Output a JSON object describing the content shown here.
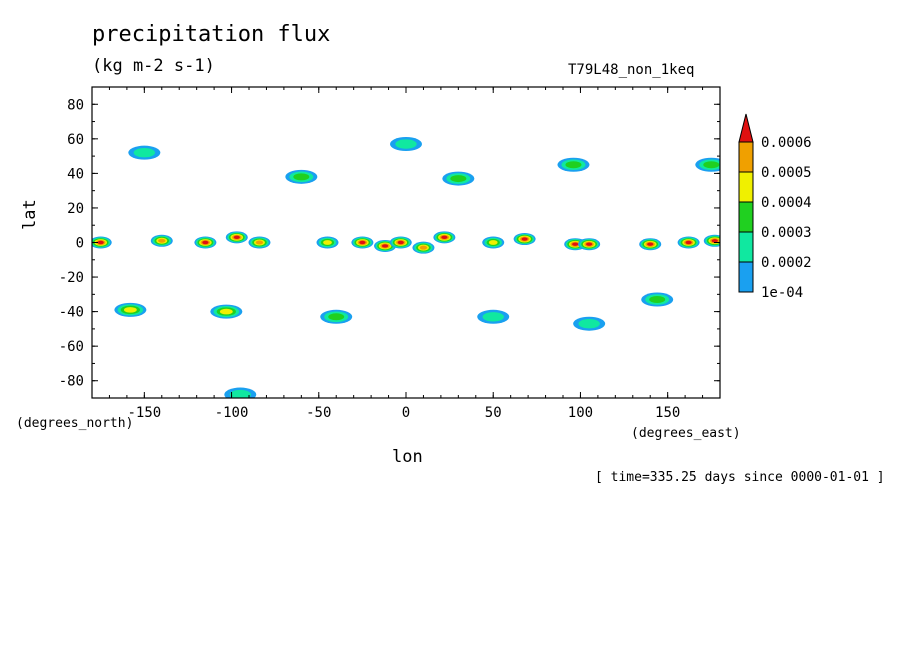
{
  "chart_data": {
    "type": "heatmap",
    "title": "precipitation flux",
    "units": "(kg m-2 s-1)",
    "run_label": "T79L48_non_1keq",
    "xlabel": "lon",
    "ylabel": "lat",
    "x_note": "(degrees_east)",
    "y_note": "(degrees_north)",
    "timestamp": "[ time=335.25 days since 0000-01-01 ]",
    "xlim": [
      -180,
      180
    ],
    "ylim": [
      -90,
      90
    ],
    "x_ticks": [
      -150,
      -100,
      -50,
      0,
      50,
      100,
      150
    ],
    "x_tick_labels": [
      "-150",
      "-100",
      "-50",
      "0",
      "50",
      "100",
      "150"
    ],
    "y_ticks": [
      80,
      60,
      40,
      20,
      0,
      -20,
      -40,
      -60,
      -80
    ],
    "y_tick_labels": [
      "80",
      "60",
      "40",
      "20",
      "0",
      "-20",
      "-40",
      "-60",
      "-80"
    ],
    "levels": [
      0.0001,
      0.0002,
      0.0003,
      0.0004,
      0.0005,
      0.0006
    ],
    "level_labels": [
      "1e-04",
      "0.0002",
      "0.0003",
      "0.0004",
      "0.0005",
      "0.0006"
    ],
    "level_colors": [
      "#1aa0f0",
      "#10e8a0",
      "#20d020",
      "#f0f000",
      "#f0a000",
      "#e01010"
    ],
    "features": [
      {
        "lon": -175,
        "lat": 0,
        "peak": 0.00065
      },
      {
        "lon": -140,
        "lat": 1,
        "peak": 0.00055
      },
      {
        "lon": -115,
        "lat": 0,
        "peak": 0.0006
      },
      {
        "lon": -97,
        "lat": 3,
        "peak": 0.0006
      },
      {
        "lon": -84,
        "lat": 0,
        "peak": 0.0005
      },
      {
        "lon": -45,
        "lat": 0,
        "peak": 0.0004
      },
      {
        "lon": -25,
        "lat": 0,
        "peak": 0.0006
      },
      {
        "lon": -12,
        "lat": -2,
        "peak": 0.00065
      },
      {
        "lon": -3,
        "lat": 0,
        "peak": 0.0007
      },
      {
        "lon": 10,
        "lat": -3,
        "peak": 0.0005
      },
      {
        "lon": 22,
        "lat": 3,
        "peak": 0.00065
      },
      {
        "lon": 50,
        "lat": 0,
        "peak": 0.0004
      },
      {
        "lon": 68,
        "lat": 2,
        "peak": 0.0006
      },
      {
        "lon": 97,
        "lat": -1,
        "peak": 0.0006
      },
      {
        "lon": 105,
        "lat": -1,
        "peak": 0.00065
      },
      {
        "lon": 140,
        "lat": -1,
        "peak": 0.0006
      },
      {
        "lon": 162,
        "lat": 0,
        "peak": 0.0007
      },
      {
        "lon": 177,
        "lat": 1,
        "peak": 0.0006
      },
      {
        "lon": -150,
        "lat": 52,
        "peak": 0.00025
      },
      {
        "lon": -60,
        "lat": 38,
        "peak": 0.0003
      },
      {
        "lon": 0,
        "lat": 57,
        "peak": 0.0002
      },
      {
        "lon": 30,
        "lat": 37,
        "peak": 0.0003
      },
      {
        "lon": 96,
        "lat": 45,
        "peak": 0.0003
      },
      {
        "lon": 175,
        "lat": 45,
        "peak": 0.0003
      },
      {
        "lon": -158,
        "lat": -39,
        "peak": 0.00045
      },
      {
        "lon": -103,
        "lat": -40,
        "peak": 0.0004
      },
      {
        "lon": -40,
        "lat": -43,
        "peak": 0.0003
      },
      {
        "lon": 50,
        "lat": -43,
        "peak": 0.0002
      },
      {
        "lon": 105,
        "lat": -47,
        "peak": 0.0002
      },
      {
        "lon": 144,
        "lat": -33,
        "peak": 0.0003
      },
      {
        "lon": -95,
        "lat": -88,
        "peak": 0.0002
      }
    ]
  }
}
